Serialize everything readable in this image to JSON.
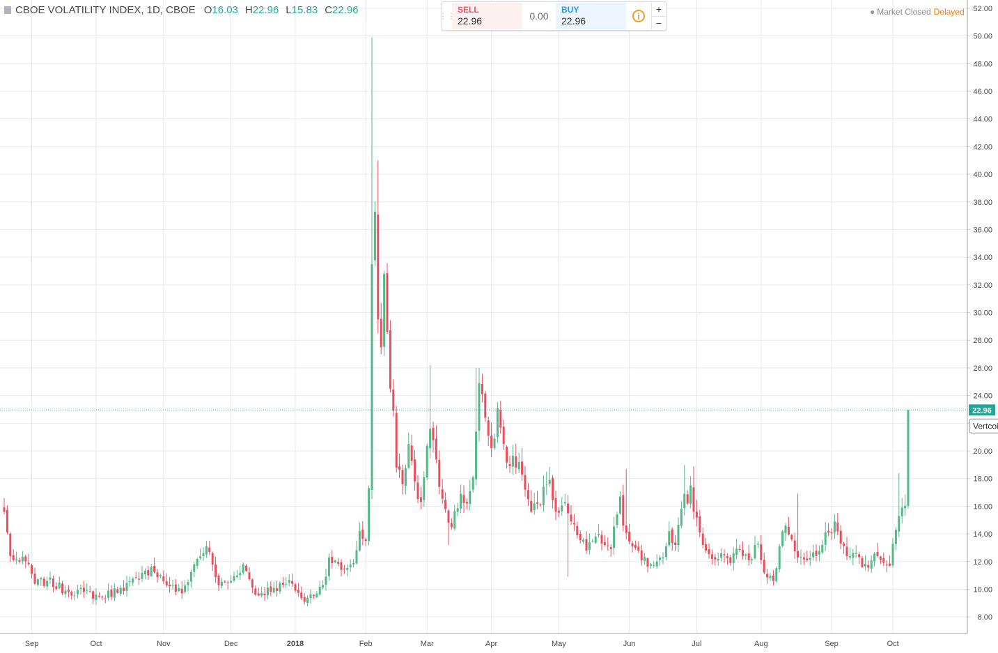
{
  "legend": {
    "symbol_label": "CBOE VOLATILITY INDEX, 1D, CBOE",
    "open_key": "O",
    "open": "16.03",
    "high_key": "H",
    "high": "22.96",
    "low_key": "L",
    "low": "15.83",
    "close_key": "C",
    "close": "22.96"
  },
  "trade_panel": {
    "sell_label": "SELL",
    "sell_price": "22.96",
    "spread": "0.00",
    "buy_label": "BUY",
    "buy_price": "22.96",
    "info_icon": "i",
    "plus": "+",
    "minus": "−"
  },
  "status": {
    "market": "Market Closed",
    "delay": "Delayed"
  },
  "colors": {
    "up": "#53b987",
    "down": "#eb4d5c",
    "grid": "#e6e9ee",
    "axis_text": "#4a4a4a",
    "last_price": "#26a69a",
    "delayed": "#f57c00"
  },
  "overlay_label": "Vertcoi",
  "chart_data": {
    "type": "candlestick",
    "title": "CBOE VOLATILITY INDEX, 1D, CBOE",
    "ylim": [
      6.8,
      52.6
    ],
    "y_ticks": [
      "8.00",
      "10.00",
      "12.00",
      "14.00",
      "16.00",
      "18.00",
      "20.00",
      "22.00",
      "24.00",
      "26.00",
      "28.00",
      "30.00",
      "32.00",
      "34.00",
      "36.00",
      "38.00",
      "40.00",
      "42.00",
      "44.00",
      "46.00",
      "48.00",
      "50.00",
      "52.00"
    ],
    "x_ticks": [
      {
        "label": "Sep",
        "index": 9
      },
      {
        "label": "Oct",
        "index": 30
      },
      {
        "label": "Nov",
        "index": 52
      },
      {
        "label": "Dec",
        "index": 74
      },
      {
        "label": "2018",
        "index": 95,
        "bold": true
      },
      {
        "label": "Feb",
        "index": 118
      },
      {
        "label": "Mar",
        "index": 138
      },
      {
        "label": "Apr",
        "index": 159
      },
      {
        "label": "May",
        "index": 181
      },
      {
        "label": "Jun",
        "index": 204
      },
      {
        "label": "Jul",
        "index": 226
      },
      {
        "label": "Aug",
        "index": 247
      },
      {
        "label": "Sep",
        "index": 270
      },
      {
        "label": "Oct",
        "index": 290
      }
    ],
    "last_price": 22.96,
    "grid": true,
    "anchors": [
      [
        0,
        15.6
      ],
      [
        2,
        12.4
      ],
      [
        5,
        12.0
      ],
      [
        8,
        11.8
      ],
      [
        10,
        10.4
      ],
      [
        14,
        10.6
      ],
      [
        20,
        9.9
      ],
      [
        26,
        9.8
      ],
      [
        32,
        9.4
      ],
      [
        38,
        10.1
      ],
      [
        44,
        10.7
      ],
      [
        48,
        11.6
      ],
      [
        54,
        10.2
      ],
      [
        58,
        9.7
      ],
      [
        62,
        11.8
      ],
      [
        66,
        13.1
      ],
      [
        70,
        10.3
      ],
      [
        74,
        10.6
      ],
      [
        78,
        11.8
      ],
      [
        82,
        9.6
      ],
      [
        88,
        10.1
      ],
      [
        94,
        10.4
      ],
      [
        98,
        9.1
      ],
      [
        104,
        10.3
      ],
      [
        106,
        12.3
      ],
      [
        110,
        11.4
      ],
      [
        114,
        11.9
      ],
      [
        116,
        14.2
      ],
      [
        118,
        13.5
      ],
      [
        119,
        17.3
      ],
      [
        120,
        33.5
      ],
      [
        121,
        37.3
      ],
      [
        122,
        29.5
      ],
      [
        123,
        27.5
      ],
      [
        124,
        32.8
      ],
      [
        125,
        28.6
      ],
      [
        126,
        24.5
      ],
      [
        127,
        22.9
      ],
      [
        128,
        18.8
      ],
      [
        130,
        17.6
      ],
      [
        132,
        20.5
      ],
      [
        134,
        17.8
      ],
      [
        136,
        16.3
      ],
      [
        137,
        18.1
      ],
      [
        139,
        21.6
      ],
      [
        141,
        19.4
      ],
      [
        142,
        17.4
      ],
      [
        144,
        15.8
      ],
      [
        146,
        14.5
      ],
      [
        149,
        16.9
      ],
      [
        151,
        16.2
      ],
      [
        153,
        18.1
      ],
      [
        154,
        21.4
      ],
      [
        155,
        24.9
      ],
      [
        157,
        22.4
      ],
      [
        159,
        20.2
      ],
      [
        161,
        23.1
      ],
      [
        163,
        20.5
      ],
      [
        165,
        18.9
      ],
      [
        168,
        19.2
      ],
      [
        170,
        17.2
      ],
      [
        172,
        15.6
      ],
      [
        175,
        16.1
      ],
      [
        177,
        17.6
      ],
      [
        178,
        17.9
      ],
      [
        180,
        15.6
      ],
      [
        183,
        16.3
      ],
      [
        185,
        14.9
      ],
      [
        187,
        13.9
      ],
      [
        190,
        12.8
      ],
      [
        193,
        13.8
      ],
      [
        196,
        13.2
      ],
      [
        198,
        12.9
      ],
      [
        200,
        15.4
      ],
      [
        201,
        16.7
      ],
      [
        202,
        14.6
      ],
      [
        205,
        13.1
      ],
      [
        208,
        12.1
      ],
      [
        211,
        11.8
      ],
      [
        214,
        12.3
      ],
      [
        216,
        13.1
      ],
      [
        217,
        14.2
      ],
      [
        219,
        13.2
      ],
      [
        221,
        15.8
      ],
      [
        222,
        16.9
      ],
      [
        223,
        16.2
      ],
      [
        224,
        17.5
      ],
      [
        225,
        15.6
      ],
      [
        227,
        14.1
      ],
      [
        229,
        12.8
      ],
      [
        231,
        12.2
      ],
      [
        234,
        12.6
      ],
      [
        237,
        11.9
      ],
      [
        240,
        12.9
      ],
      [
        243,
        12.1
      ],
      [
        246,
        13.3
      ],
      [
        248,
        11.2
      ],
      [
        251,
        10.6
      ],
      [
        253,
        13.1
      ],
      [
        255,
        14.6
      ],
      [
        257,
        13.6
      ],
      [
        259,
        12.3
      ],
      [
        262,
        12.1
      ],
      [
        265,
        12.4
      ],
      [
        267,
        13.2
      ],
      [
        269,
        14.1
      ],
      [
        271,
        14.9
      ],
      [
        273,
        13.3
      ],
      [
        276,
        12.4
      ],
      [
        278,
        12.6
      ],
      [
        280,
        11.6
      ],
      [
        283,
        12.1
      ],
      [
        285,
        12.4
      ],
      [
        287,
        11.9
      ],
      [
        289,
        11.7
      ],
      [
        291,
        14.3
      ],
      [
        292,
        15.3
      ],
      [
        293,
        15.9
      ],
      [
        294,
        16.03
      ],
      [
        295,
        22.96
      ]
    ],
    "spikes": [
      [
        120,
        49.9
      ],
      [
        122,
        41.0
      ],
      [
        139,
        26.2
      ],
      [
        154,
        26.0
      ],
      [
        145,
        13.2
      ],
      [
        184,
        10.9
      ],
      [
        203,
        18.7
      ],
      [
        222,
        19.0
      ],
      [
        225,
        18.9
      ],
      [
        259,
        16.9
      ],
      [
        292,
        18.4
      ]
    ]
  }
}
